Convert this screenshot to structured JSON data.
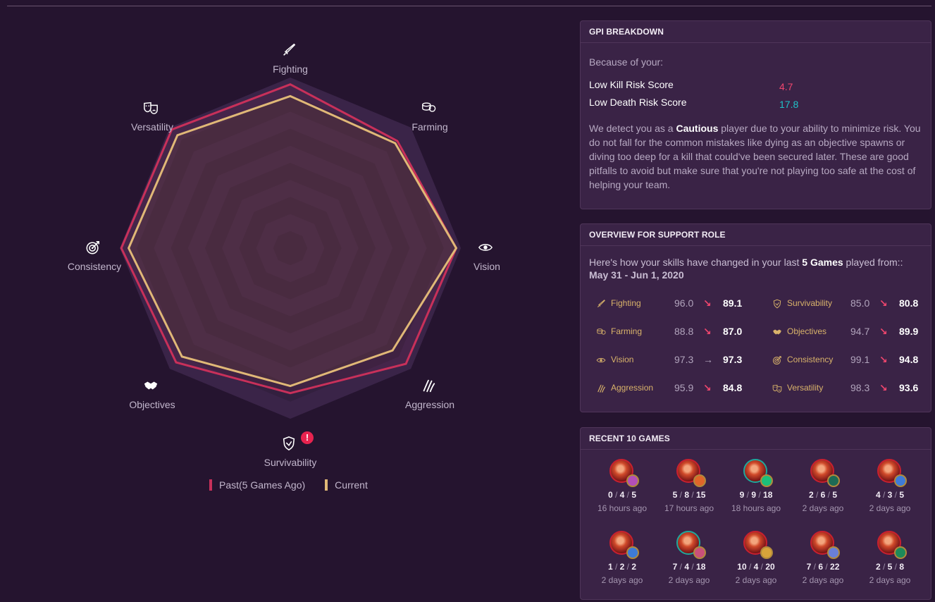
{
  "radar": {
    "axes": [
      "Fighting",
      "Farming",
      "Vision",
      "Aggression",
      "Survivability",
      "Objectives",
      "Consistency",
      "Versatility"
    ],
    "axis_icons": [
      "sword-icon",
      "coins-icon",
      "eye-icon",
      "claw-icon",
      "shield-icon",
      "handshake-icon",
      "target-icon",
      "masks-icon"
    ],
    "past": [
      96.0,
      88.8,
      97.3,
      95.9,
      85.0,
      94.7,
      99.1,
      98.3
    ],
    "current": [
      89.1,
      87.0,
      97.3,
      84.8,
      80.8,
      89.9,
      94.8,
      93.6
    ],
    "colors": {
      "past": "#c8305a",
      "current": "#e0b877"
    },
    "legend": {
      "past": "Past(5 Games Ago)",
      "current": "Current"
    },
    "warning_mark": "!"
  },
  "gpi": {
    "header": "GPI BREAKDOWN",
    "because": "Because of your:",
    "risks": [
      {
        "label": "Low Kill Risk Score",
        "value": "4.7",
        "color": "#f0466e"
      },
      {
        "label": "Low Death Risk Score",
        "value": "17.8",
        "color": "#1fc2c8"
      }
    ],
    "desc_pre": "We detect you as a ",
    "desc_bold": "Cautious",
    "desc_post": " player due to your ability to minimize risk.  You do not fall for the common mistakes like dying as an objective spawns or diving too deep for a kill that could've been secured later. These are good pitfalls to avoid but make sure that you're not playing too safe at the cost of helping your team."
  },
  "overview": {
    "header": "OVERVIEW FOR SUPPORT ROLE",
    "intro_pre": "Here's how your skills have changed in your last ",
    "intro_bold": "5 Games",
    "intro_post": " played from::",
    "range": "May 31 - Jun 1, 2020",
    "stats": [
      {
        "name": "Fighting",
        "icon": "sword-icon",
        "old": "96.0",
        "new": "89.1",
        "trend": "down"
      },
      {
        "name": "Survivability",
        "icon": "shield-icon",
        "old": "85.0",
        "new": "80.8",
        "trend": "down"
      },
      {
        "name": "Farming",
        "icon": "coins-icon",
        "old": "88.8",
        "new": "87.0",
        "trend": "down"
      },
      {
        "name": "Objectives",
        "icon": "handshake-icon",
        "old": "94.7",
        "new": "89.9",
        "trend": "down"
      },
      {
        "name": "Vision",
        "icon": "eye-icon",
        "old": "97.3",
        "new": "97.3",
        "trend": "flat"
      },
      {
        "name": "Consistency",
        "icon": "target-icon",
        "old": "99.1",
        "new": "94.8",
        "trend": "down"
      },
      {
        "name": "Aggression",
        "icon": "claw-icon",
        "old": "95.9",
        "new": "84.8",
        "trend": "down"
      },
      {
        "name": "Versatility",
        "icon": "masks-icon",
        "old": "98.3",
        "new": "93.6",
        "trend": "down"
      }
    ],
    "trend_colors": {
      "down": "#f0466e",
      "flat": "#b1a4bc"
    }
  },
  "recent": {
    "header": "RECENT 10 GAMES",
    "games": [
      {
        "k": "0",
        "d": "4",
        "a": "5",
        "when": "16 hours ago",
        "ring": "red",
        "rune": "#b34fb8"
      },
      {
        "k": "5",
        "d": "8",
        "a": "15",
        "when": "17 hours ago",
        "ring": "red",
        "rune": "#e0662a"
      },
      {
        "k": "9",
        "d": "9",
        "a": "18",
        "when": "18 hours ago",
        "ring": "teal",
        "rune": "#1cbf7a"
      },
      {
        "k": "2",
        "d": "6",
        "a": "5",
        "when": "2 days ago",
        "ring": "red",
        "rune": "#1d6a55"
      },
      {
        "k": "4",
        "d": "3",
        "a": "5",
        "when": "2 days ago",
        "ring": "red",
        "rune": "#3e7bd8"
      },
      {
        "k": "1",
        "d": "2",
        "a": "2",
        "when": "2 days ago",
        "ring": "red",
        "rune": "#3e7bd8"
      },
      {
        "k": "7",
        "d": "4",
        "a": "18",
        "when": "2 days ago",
        "ring": "teal",
        "rune": "#c9507a"
      },
      {
        "k": "10",
        "d": "4",
        "a": "20",
        "when": "2 days ago",
        "ring": "red",
        "rune": "#d7a33a"
      },
      {
        "k": "7",
        "d": "6",
        "a": "22",
        "when": "2 days ago",
        "ring": "red",
        "rune": "#6a7fd8"
      },
      {
        "k": "2",
        "d": "5",
        "a": "8",
        "when": "2 days ago",
        "ring": "red",
        "rune": "#1d8a5a"
      }
    ]
  }
}
